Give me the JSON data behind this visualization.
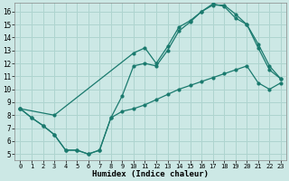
{
  "xlabel": "Humidex (Indice chaleur)",
  "background_color": "#cce8e5",
  "grid_color": "#aed4cf",
  "line_color": "#1a7a6e",
  "xlim": [
    -0.5,
    23.5
  ],
  "ylim": [
    4.5,
    16.7
  ],
  "xticks": [
    0,
    1,
    2,
    3,
    4,
    5,
    6,
    7,
    8,
    9,
    10,
    11,
    12,
    13,
    14,
    15,
    16,
    17,
    18,
    19,
    20,
    21,
    22,
    23
  ],
  "yticks": [
    5,
    6,
    7,
    8,
    9,
    10,
    11,
    12,
    13,
    14,
    15,
    16
  ],
  "line1_x": [
    0,
    1,
    2,
    3,
    4,
    5,
    6,
    7,
    8,
    9,
    10,
    11,
    12,
    13,
    14,
    15,
    16,
    17,
    18,
    19,
    20,
    21,
    22,
    23
  ],
  "line1_y": [
    8.5,
    7.8,
    7.2,
    6.5,
    5.3,
    5.3,
    5.0,
    5.3,
    7.8,
    8.3,
    8.5,
    8.8,
    9.2,
    9.6,
    10.0,
    10.3,
    10.6,
    10.9,
    11.2,
    11.5,
    11.8,
    10.5,
    10.0,
    10.5
  ],
  "line2_x": [
    0,
    1,
    2,
    3,
    4,
    5,
    6,
    7,
    8,
    9,
    10,
    11,
    12,
    13,
    14,
    15,
    16,
    17,
    18,
    19,
    20,
    21,
    22,
    23
  ],
  "line2_y": [
    8.5,
    7.8,
    7.2,
    6.5,
    5.3,
    5.3,
    5.0,
    5.3,
    7.8,
    9.5,
    11.8,
    12.0,
    11.8,
    13.0,
    14.5,
    15.2,
    16.0,
    16.5,
    16.5,
    15.8,
    15.0,
    13.5,
    11.8,
    10.8
  ],
  "line3_x": [
    0,
    3,
    10,
    11,
    12,
    13,
    14,
    15,
    16,
    17,
    18,
    19,
    20,
    21,
    22,
    23
  ],
  "line3_y": [
    8.5,
    8.0,
    12.8,
    13.2,
    12.0,
    13.3,
    14.8,
    15.3,
    16.0,
    16.6,
    16.4,
    15.5,
    15.0,
    13.2,
    11.5,
    10.8
  ]
}
